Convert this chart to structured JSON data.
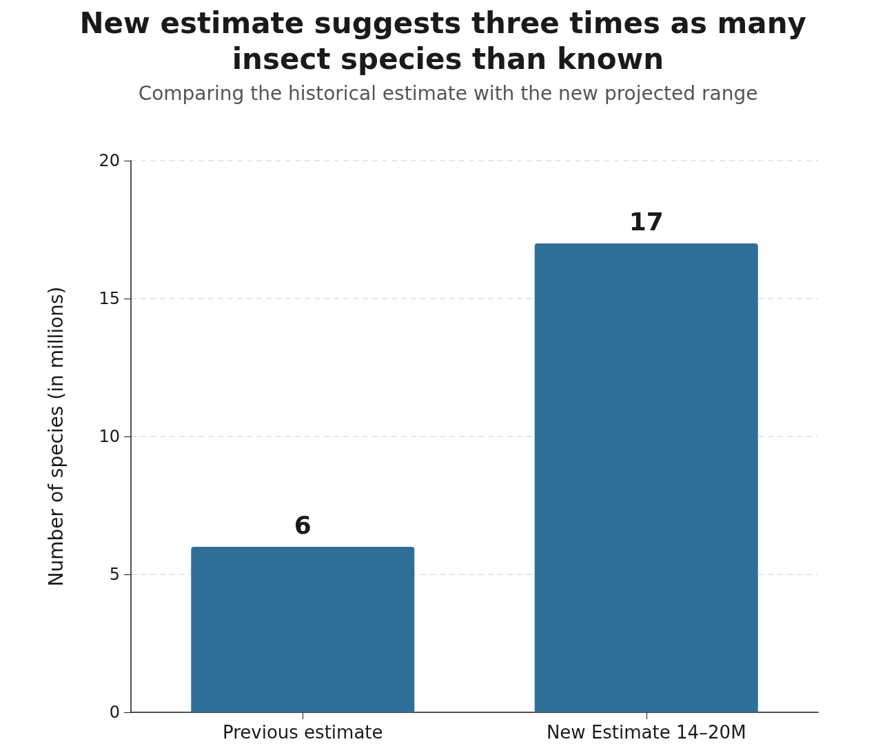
{
  "chart_data": {
    "type": "bar",
    "title": "New estimate suggests three times as many insect species than known",
    "subtitle": "Comparing the historical estimate with the new projected range",
    "ylabel": "Number of species (in millions)",
    "categories": [
      "Previous estimate",
      "New Estimate 14–20M"
    ],
    "values": [
      6,
      17
    ],
    "color": "#2e6f9a",
    "ylim": [
      0,
      20
    ],
    "yticks": [
      0,
      5,
      10,
      15,
      20
    ],
    "grid": "y",
    "data_labels": true
  }
}
